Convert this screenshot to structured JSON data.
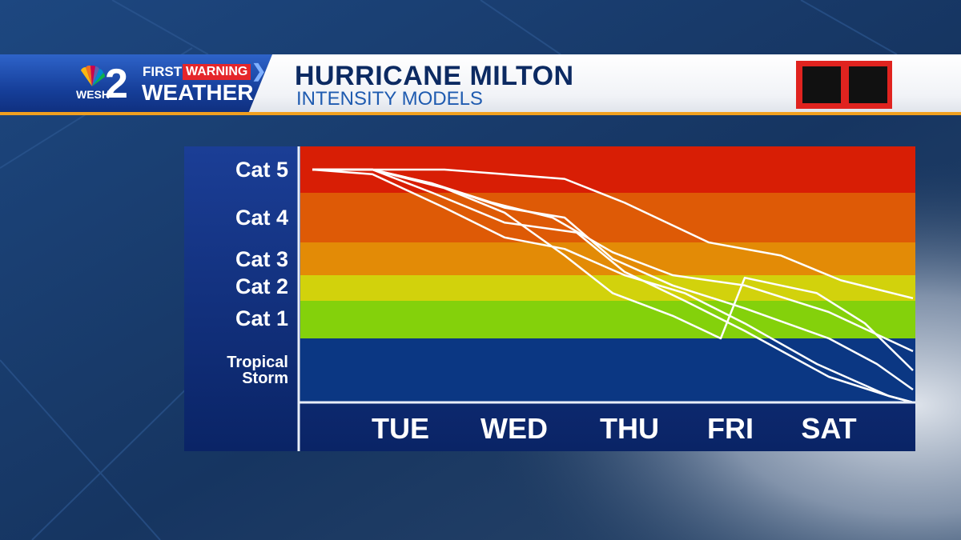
{
  "banner": {
    "station_number": "2",
    "station_call": "WESH",
    "first_label": "FIRST",
    "warning_label": "WARNING",
    "weather_label": "WEATHER",
    "title": "HURRICANE MILTON",
    "subtitle": "INTENSITY MODELS"
  },
  "chart_data": {
    "type": "line",
    "title": "HURRICANE MILTON",
    "subtitle": "INTENSITY MODELS",
    "y_categories": [
      "Tropical Storm",
      "Cat 1",
      "Cat 2",
      "Cat 3",
      "Cat 4",
      "Cat 5"
    ],
    "y_tick_labels": [
      "Cat 5",
      "Cat 4",
      "Cat 3",
      "Cat 2",
      "Cat 1",
      "Tropical Storm"
    ],
    "x_tick_labels": [
      "TUE",
      "WED",
      "THU",
      "FRI",
      "SAT"
    ],
    "x_range": [
      0,
      5
    ],
    "y_range": [
      0,
      6
    ],
    "band_colors": {
      "Cat 5": "#d81e05",
      "Cat 4": "#de5a06",
      "Cat 3": "#e38b06",
      "Cat 2": "#d2d20c",
      "Cat 1": "#84d10b",
      "Tropical Storm": "#0b3783"
    },
    "series": [
      {
        "x": [
          0,
          0.5,
          1.1,
          1.6,
          2.1,
          2.6,
          3.3,
          3.9,
          4.4,
          5.0
        ],
        "y": [
          5.5,
          5.5,
          5.5,
          5.4,
          5.3,
          4.8,
          4.0,
          3.6,
          2.8,
          2.1
        ]
      },
      {
        "x": [
          0,
          0.5,
          1.0,
          1.5,
          2.0,
          2.5,
          3.0,
          3.6,
          4.3,
          5.0
        ],
        "y": [
          5.5,
          5.5,
          5.2,
          4.8,
          4.5,
          3.7,
          3.0,
          2.6,
          1.7,
          0.8
        ]
      },
      {
        "x": [
          0,
          0.5,
          1.0,
          1.6,
          2.1,
          2.5,
          3.0,
          3.6,
          4.3,
          4.7,
          5.0
        ],
        "y": [
          5.5,
          5.5,
          5.2,
          4.7,
          4.5,
          3.5,
          2.6,
          1.8,
          1.0,
          0.6,
          0.2
        ]
      },
      {
        "x": [
          0,
          0.5,
          1.1,
          1.6,
          2.1,
          2.6,
          3.1,
          3.6,
          4.2,
          4.8,
          5.0
        ],
        "y": [
          5.5,
          5.4,
          4.7,
          4.1,
          3.8,
          3.0,
          2.3,
          1.4,
          0.6,
          0.1,
          0.0
        ]
      },
      {
        "x": [
          0,
          0.5,
          1.0,
          1.6,
          2.2,
          2.6,
          3.1,
          3.6,
          4.3,
          4.8,
          5.0
        ],
        "y": [
          5.5,
          5.5,
          5.0,
          4.4,
          4.2,
          3.1,
          2.0,
          1.2,
          0.4,
          0.1,
          0.0
        ]
      },
      {
        "x": [
          0,
          0.5,
          1.1,
          1.6,
          2.1,
          2.5,
          3.0,
          3.4,
          3.6,
          4.2,
          4.6,
          5.0
        ],
        "y": [
          5.5,
          5.5,
          5.1,
          4.6,
          3.6,
          2.3,
          1.6,
          1.0,
          2.9,
          2.3,
          1.4,
          0.5
        ]
      }
    ]
  }
}
